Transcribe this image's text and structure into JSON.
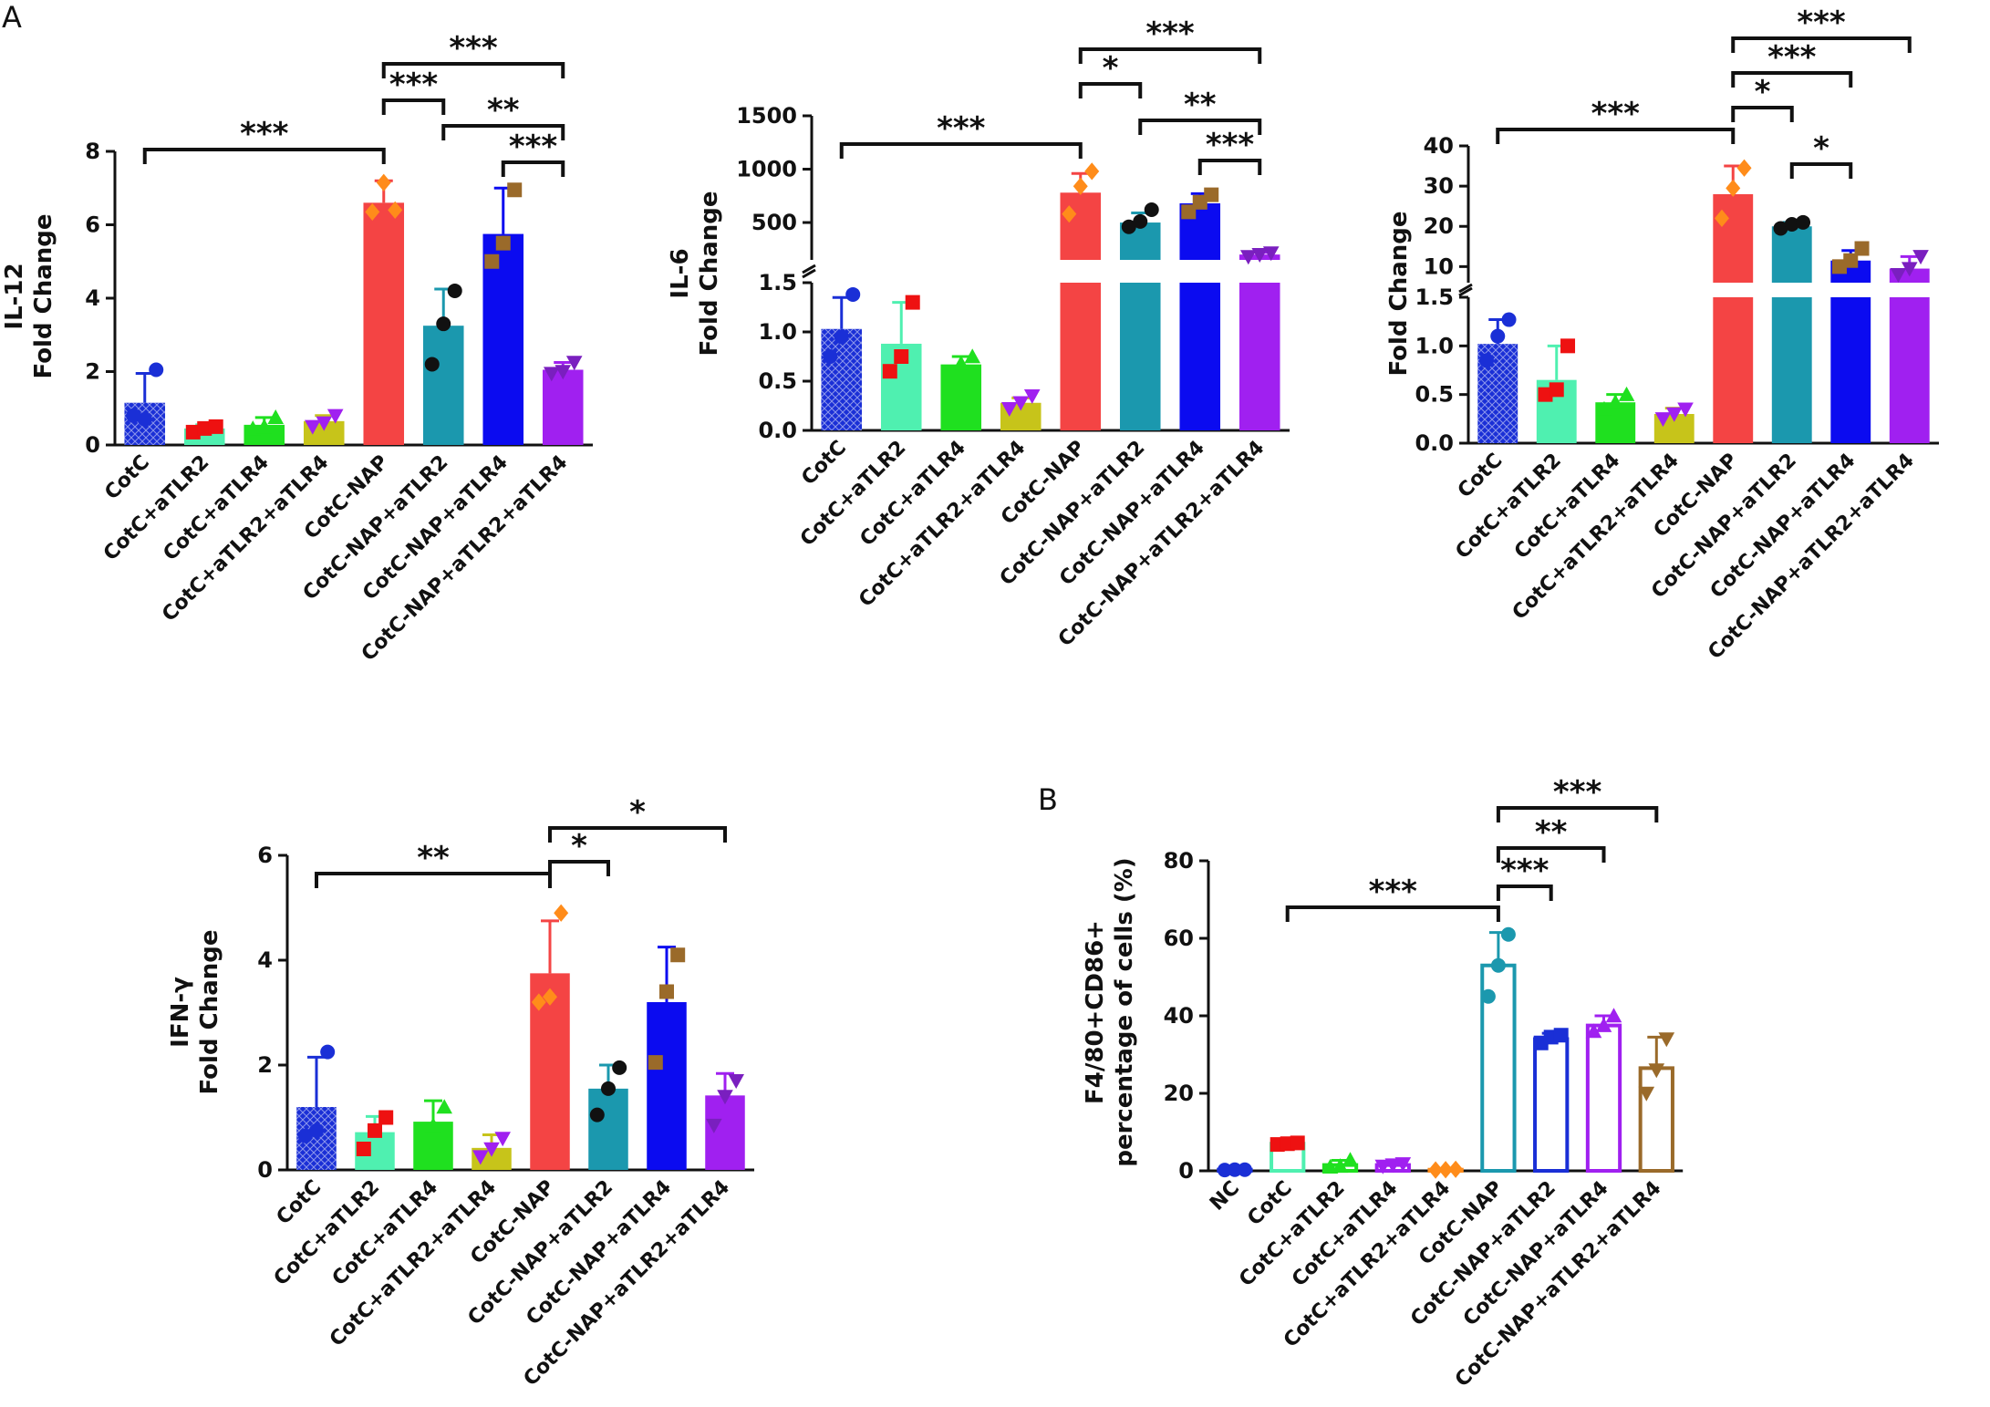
{
  "panel_labels": [
    "A",
    "B"
  ],
  "palette": {
    "CotC": "#1a2fd6",
    "CotC+aTLR2": "#4ff0b0",
    "CotC+aTLR4": "#1fe01f",
    "CotC+aTLR2+aTLR4": "#c7c41a",
    "CotC-NAP": "#f44444",
    "CotC-NAP+aTLR2": "#1b98ae",
    "CotC-NAP+aTLR4": "#0b0bf0",
    "CotC-NAP+aTLR2+aTLR4": "#a020f0",
    "NC": "#1a2fd6",
    "B_CotC": "#f01c1c",
    "B_CotC-NAP+aTLR2+aTLR4": "#9a6a2a"
  },
  "chart_data": [
    {
      "id": "il12",
      "type": "bar",
      "ylabel_lines": [
        "IL-12",
        "Fold Change"
      ],
      "ylim": [
        0,
        8
      ],
      "yticks": [
        "0",
        "2",
        "4",
        "6",
        "8"
      ],
      "categories": [
        "CotC",
        "CotC+aTLR2",
        "CotC+aTLR4",
        "CotC+aTLR2+aTLR4",
        "CotC-NAP",
        "CotC-NAP+aTLR2",
        "CotC-NAP+aTLR4",
        "CotC-NAP+aTLR2+aTLR4"
      ],
      "values": [
        1.15,
        0.45,
        0.55,
        0.65,
        6.6,
        3.25,
        5.75,
        2.05
      ],
      "errors": [
        0.8,
        0.1,
        0.2,
        0.15,
        0.6,
        1.0,
        1.25,
        0.2
      ],
      "points": [
        [
          0.8,
          0.7,
          2.05
        ],
        [
          0.35,
          0.45,
          0.5
        ],
        [
          0.45,
          0.5,
          0.75
        ],
        [
          0.5,
          0.6,
          0.8
        ],
        [
          6.35,
          7.15,
          6.4
        ],
        [
          2.2,
          3.3,
          4.2
        ],
        [
          5.0,
          5.5,
          6.95
        ],
        [
          1.95,
          2.0,
          2.25
        ]
      ],
      "significance": [
        {
          "from": 0,
          "to": 4,
          "label": "***"
        },
        {
          "from": 4,
          "to": 7,
          "label": "***"
        },
        {
          "from": 4,
          "to": 5,
          "label": "***"
        },
        {
          "from": 5,
          "to": 7,
          "label": "**"
        },
        {
          "from": 6,
          "to": 7,
          "label": "***"
        }
      ]
    },
    {
      "id": "il6",
      "type": "bar",
      "broken_axis": true,
      "ylabel_lines": [
        "IL-6",
        "Fold Change"
      ],
      "lower_ylim": [
        0,
        1.5
      ],
      "lower_yticks": [
        "0.0",
        "0.5",
        "1.0",
        "1.5"
      ],
      "upper_ylim": [
        150,
        1500
      ],
      "upper_yticks": [
        "500",
        "1000",
        "1500"
      ],
      "categories": [
        "CotC",
        "CotC+aTLR2",
        "CotC+aTLR4",
        "CotC+aTLR2+aTLR4",
        "CotC-NAP",
        "CotC-NAP+aTLR2",
        "CotC-NAP+aTLR4",
        "CotC-NAP+aTLR2+aTLR4"
      ],
      "values": [
        1.03,
        0.88,
        0.67,
        0.28,
        780,
        500,
        680,
        200
      ],
      "errors": [
        0.32,
        0.42,
        0.08,
        0.05,
        180,
        90,
        90,
        20
      ],
      "points": [
        [
          0.75,
          0.95,
          1.38
        ],
        [
          0.6,
          0.75,
          1.3
        ],
        [
          0.58,
          0.68,
          0.75
        ],
        [
          0.22,
          0.28,
          0.35
        ],
        [
          580,
          840,
          980
        ],
        [
          460,
          510,
          620
        ],
        [
          600,
          690,
          760
        ],
        [
          180,
          200,
          215
        ]
      ],
      "significance": [
        {
          "from": 0,
          "to": 4,
          "label": "***"
        },
        {
          "from": 4,
          "to": 7,
          "label": "***"
        },
        {
          "from": 4,
          "to": 5,
          "label": "*"
        },
        {
          "from": 5,
          "to": 7,
          "label": "**"
        },
        {
          "from": 6,
          "to": 7,
          "label": "***"
        }
      ]
    },
    {
      "id": "panel3",
      "type": "bar",
      "broken_axis": true,
      "ylabel_lines": [
        "Fold Change"
      ],
      "lower_ylim": [
        0,
        1.5
      ],
      "lower_yticks": [
        "0.0",
        "0.5",
        "1.0",
        "1.5"
      ],
      "upper_ylim": [
        6,
        40
      ],
      "upper_yticks": [
        "10",
        "20",
        "30",
        "40"
      ],
      "categories": [
        "CotC",
        "CotC+aTLR2",
        "CotC+aTLR4",
        "CotC+aTLR2+aTLR4",
        "CotC-NAP",
        "CotC-NAP+aTLR2",
        "CotC-NAP+aTLR4",
        "CotC-NAP+aTLR2+aTLR4"
      ],
      "values": [
        1.02,
        0.65,
        0.42,
        0.3,
        28,
        20,
        11.5,
        9.5
      ],
      "errors": [
        0.25,
        0.35,
        0.08,
        0.06,
        7,
        1,
        2.5,
        3
      ],
      "points": [
        [
          0.85,
          1.1,
          1.27
        ],
        [
          0.5,
          0.55,
          1.0
        ],
        [
          0.35,
          0.42,
          0.5
        ],
        [
          0.25,
          0.3,
          0.35
        ],
        [
          22.0,
          29.5,
          34.5
        ],
        [
          19.5,
          20.5,
          21.0
        ],
        [
          10.0,
          11.5,
          14.5
        ],
        [
          8.0,
          9.5,
          12.5
        ]
      ],
      "significance": [
        {
          "from": 0,
          "to": 4,
          "label": "***"
        },
        {
          "from": 4,
          "to": 7,
          "label": "***"
        },
        {
          "from": 4,
          "to": 6,
          "label": "***"
        },
        {
          "from": 4,
          "to": 5,
          "label": "*"
        },
        {
          "from": 5,
          "to": 6,
          "label": "*"
        }
      ]
    },
    {
      "id": "ifng",
      "type": "bar",
      "ylabel_lines": [
        "IFN-γ",
        "Fold Change"
      ],
      "ylim": [
        0,
        6
      ],
      "yticks": [
        "0",
        "2",
        "4",
        "6"
      ],
      "categories": [
        "CotC",
        "CotC+aTLR2",
        "CotC+aTLR4",
        "CotC+aTLR2+aTLR4",
        "CotC-NAP",
        "CotC-NAP+aTLR2",
        "CotC-NAP+aTLR4",
        "CotC-NAP+aTLR2+aTLR4"
      ],
      "values": [
        1.2,
        0.72,
        0.92,
        0.42,
        3.75,
        1.55,
        3.2,
        1.42
      ],
      "errors": [
        0.95,
        0.3,
        0.4,
        0.25,
        1.0,
        0.45,
        1.05,
        0.42
      ],
      "points": [
        [
          0.65,
          0.75,
          2.25
        ],
        [
          0.4,
          0.75,
          1.0
        ],
        [
          0.5,
          0.85,
          1.2
        ],
        [
          0.25,
          0.4,
          0.6
        ],
        [
          3.2,
          3.3,
          4.9
        ],
        [
          1.05,
          1.55,
          1.95
        ],
        [
          2.05,
          3.4,
          4.1
        ],
        [
          0.85,
          1.4,
          1.7
        ]
      ],
      "significance": [
        {
          "from": 0,
          "to": 4,
          "label": "**"
        },
        {
          "from": 4,
          "to": 7,
          "label": "*"
        },
        {
          "from": 4,
          "to": 5,
          "label": "*"
        }
      ]
    },
    {
      "id": "f480",
      "type": "bar",
      "style": "outline",
      "ylabel_lines": [
        "F4/80+CD86+",
        "percentage of cells (%)"
      ],
      "ylim": [
        0,
        80
      ],
      "yticks": [
        "0",
        "20",
        "40",
        "60",
        "80"
      ],
      "categories": [
        "NC",
        "CotC",
        "CotC+aTLR2",
        "CotC+aTLR4",
        "CotC+aTLR2+aTLR4",
        "CotC-NAP",
        "CotC-NAP+aTLR2",
        "CotC-NAP+aTLR4",
        "CotC-NAP+aTLR2+aTLR4"
      ],
      "values": [
        0.3,
        7,
        1.5,
        1.5,
        0.3,
        53,
        34,
        37.5,
        26.5
      ],
      "errors": [
        0.1,
        0.5,
        1.2,
        0.5,
        0.1,
        8.5,
        1.5,
        2.5,
        8
      ],
      "points": [
        [
          0.2,
          0.3,
          0.3
        ],
        [
          6.8,
          7.0,
          7.2
        ],
        [
          1.0,
          1.2,
          2.8
        ],
        [
          1.2,
          1.5,
          1.8
        ],
        [
          0.2,
          0.3,
          0.4
        ],
        [
          45.0,
          53.0,
          61.0
        ],
        [
          33.0,
          34.5,
          35.0
        ],
        [
          36.0,
          37.5,
          40.0
        ],
        [
          20.0,
          26.0,
          34.0
        ]
      ],
      "significance": [
        {
          "from": 1,
          "to": 5,
          "label": "***"
        },
        {
          "from": 5,
          "to": 8,
          "label": "***"
        },
        {
          "from": 5,
          "to": 7,
          "label": "**"
        },
        {
          "from": 5,
          "to": 6,
          "label": "***"
        }
      ]
    }
  ]
}
